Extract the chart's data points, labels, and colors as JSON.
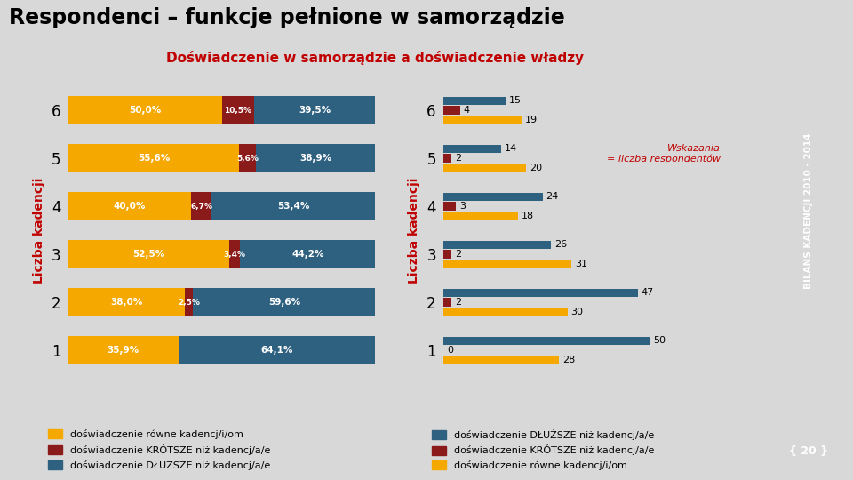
{
  "title_main": "Respondenci – funkcje pełnione w samorządzie",
  "title_sub": "Doświadczenie w samorządzie a doświadczenie władzy",
  "ylabel": "Liczba kadencji",
  "bg_color": "#d8d8d8",
  "sidebar_color": "#4a4a4a",
  "left_categories": [
    "1",
    "2",
    "3",
    "4",
    "5",
    "6"
  ],
  "left_data": {
    "rowne": [
      35.9,
      38.0,
      52.5,
      40.0,
      55.6,
      50.0
    ],
    "krotsze": [
      0.0,
      2.5,
      3.4,
      6.7,
      5.6,
      10.5
    ],
    "dluzsze": [
      64.1,
      59.6,
      44.2,
      53.4,
      38.9,
      39.5
    ]
  },
  "left_labels": {
    "rowne": [
      "35,9%",
      "38,0%",
      "52,5%",
      "40,0%",
      "55,6%",
      "50,0%"
    ],
    "krotsze": [
      "",
      "2,5%",
      "3,4%",
      "6,7%",
      "5,6%",
      "10,5%"
    ],
    "dluzsze": [
      "64,1%",
      "59,6%",
      "44,2%",
      "53,4%",
      "38,9%",
      "39,5%"
    ]
  },
  "right_categories": [
    "1",
    "2",
    "3",
    "4",
    "5",
    "6"
  ],
  "right_data": {
    "dluzsze": [
      50,
      47,
      26,
      24,
      14,
      15
    ],
    "krotsze": [
      0,
      2,
      2,
      3,
      2,
      4
    ],
    "rowne": [
      28,
      30,
      31,
      18,
      20,
      19
    ]
  },
  "color_rowne": "#f5a800",
  "color_krotsze": "#8b1a1a",
  "color_dluzsze": "#2e6080",
  "legend_left": [
    "doświadczenie równe kadencj/i/om",
    "doświadczenie KRÓTSZE niż kadencj/a/e",
    "doświadczenie DŁUŻSZE niż kadencj/a/e"
  ],
  "legend_right": [
    "doświadczenie DŁUŻSZE niż kadencj/a/e",
    "doświadczenie KRÓTSZE niż kadencj/a/e",
    "doświadczenie równe kadencj/i/om"
  ],
  "wskazania_text": "Wskazania\n= liczba respondentów",
  "sidebar_text": "BILANS KADENCJI 2010 - 2014",
  "sidebar_number": "{ 20 }"
}
